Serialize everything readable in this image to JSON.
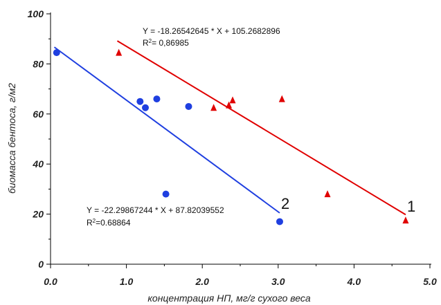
{
  "chart_data": {
    "type": "scatter",
    "title": "",
    "xlabel": "концентрация НП, мг/г сухого веса",
    "ylabel": "биомасса бентоса, г/м2",
    "xlim": [
      0,
      5
    ],
    "ylim": [
      0,
      100
    ],
    "x_ticks": [
      "0.0",
      "1.0",
      "2.0",
      "3.0",
      "4.0",
      "5.0"
    ],
    "y_ticks": [
      "0",
      "20",
      "40",
      "60",
      "80",
      "100"
    ],
    "grid": false,
    "series": [
      {
        "tag": "1",
        "marker": "triangle",
        "color": "#e00000",
        "points": [
          {
            "x": 0.9,
            "y": 84.5
          },
          {
            "x": 2.15,
            "y": 62.5
          },
          {
            "x": 2.35,
            "y": 63.5
          },
          {
            "x": 2.4,
            "y": 65.5
          },
          {
            "x": 3.05,
            "y": 66
          },
          {
            "x": 3.65,
            "y": 28
          },
          {
            "x": 4.68,
            "y": 17.5
          }
        ],
        "fit": {
          "slope": -18.26542645,
          "intercept": 105.2682896,
          "x_range": [
            0.88,
            4.68
          ],
          "equation": "Y = -18.26542645 * X + 105.2682896",
          "r2_prefix": "R",
          "r2_sup": "2",
          "r2_rest": "= 0,86985"
        }
      },
      {
        "tag": "2",
        "marker": "circle",
        "color": "#1f3fe0",
        "points": [
          {
            "x": 0.08,
            "y": 84.5
          },
          {
            "x": 1.18,
            "y": 65
          },
          {
            "x": 1.25,
            "y": 62.5
          },
          {
            "x": 1.4,
            "y": 66
          },
          {
            "x": 1.52,
            "y": 28
          },
          {
            "x": 1.82,
            "y": 63
          },
          {
            "x": 3.02,
            "y": 17
          }
        ],
        "fit": {
          "slope": -22.29867244,
          "intercept": 87.82039552,
          "x_range": [
            0.05,
            3.02
          ],
          "equation": "Y = -22.29867244 * X + 87.82039552",
          "r2_prefix": "R",
          "r2_sup": "2",
          "r2_rest": "=0.68864"
        }
      }
    ]
  }
}
